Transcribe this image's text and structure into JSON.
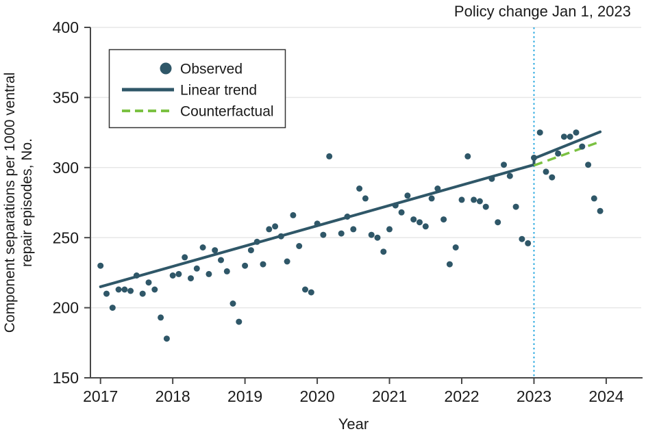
{
  "figure": {
    "policy_annotation": "Policy change Jan 1, 2023",
    "x_axis": {
      "label": "Year",
      "ticks": [
        "2017",
        "2018",
        "2019",
        "2020",
        "2021",
        "2022",
        "2023",
        "2024"
      ]
    },
    "y_axis": {
      "title_line1": "Component separations per 1000 ventral",
      "title_line2": "repair episodes, No.",
      "ticks": [
        "150",
        "200",
        "250",
        "300",
        "350",
        "400"
      ]
    },
    "legend": {
      "items": [
        {
          "label": "Observed",
          "marker": "dot"
        },
        {
          "label": "Linear trend",
          "marker": "solid-line"
        },
        {
          "label": "Counterfactual",
          "marker": "dashed-line"
        }
      ]
    }
  },
  "colors": {
    "observed": "#2F5768",
    "trend": "#2F5768",
    "counterfactual": "#7BC142",
    "policy": "#29A9E0",
    "grid": "#E7E7E7",
    "axis": "#474747",
    "text": "#1A1A1A"
  },
  "chart_data": {
    "type": "scatter",
    "title": "Policy change Jan 1, 2023",
    "xlabel": "Year",
    "ylabel": "Component separations per 1000 ventral repair episodes, No.",
    "ylim": [
      150,
      400
    ],
    "xlim": [
      2016.86,
      2024.49
    ],
    "x_ticks": [
      2017,
      2018,
      2019,
      2020,
      2021,
      2022,
      2023,
      2024
    ],
    "y_ticks": [
      150,
      200,
      250,
      300,
      350,
      400
    ],
    "grid": "horizontal-only",
    "legend_position": "upper-left-inset",
    "policy_change_x": 2023.0,
    "observed_monthly": [
      [
        "2017-01",
        230
      ],
      [
        "2017-02",
        210
      ],
      [
        "2017-03",
        200
      ],
      [
        "2017-04",
        213
      ],
      [
        "2017-05",
        213
      ],
      [
        "2017-06",
        212
      ],
      [
        "2017-07",
        223
      ],
      [
        "2017-08",
        210
      ],
      [
        "2017-09",
        218
      ],
      [
        "2017-10",
        213
      ],
      [
        "2017-11",
        193
      ],
      [
        "2017-12",
        178
      ],
      [
        "2018-01",
        223
      ],
      [
        "2018-02",
        224
      ],
      [
        "2018-03",
        236
      ],
      [
        "2018-04",
        221
      ],
      [
        "2018-05",
        228
      ],
      [
        "2018-06",
        243
      ],
      [
        "2018-07",
        224
      ],
      [
        "2018-08",
        241
      ],
      [
        "2018-09",
        234
      ],
      [
        "2018-10",
        226
      ],
      [
        "2018-11",
        203
      ],
      [
        "2018-12",
        190
      ],
      [
        "2019-01",
        230
      ],
      [
        "2019-02",
        241
      ],
      [
        "2019-03",
        247
      ],
      [
        "2019-04",
        231
      ],
      [
        "2019-05",
        256
      ],
      [
        "2019-06",
        258
      ],
      [
        "2019-07",
        251
      ],
      [
        "2019-08",
        233
      ],
      [
        "2019-09",
        266
      ],
      [
        "2019-10",
        244
      ],
      [
        "2019-11",
        213
      ],
      [
        "2019-12",
        211
      ],
      [
        "2020-01",
        260
      ],
      [
        "2020-02",
        252
      ],
      [
        "2020-03",
        308
      ],
      [
        "2020-05",
        253
      ],
      [
        "2020-06",
        265
      ],
      [
        "2020-07",
        256
      ],
      [
        "2020-08",
        285
      ],
      [
        "2020-09",
        278
      ],
      [
        "2020-10",
        252
      ],
      [
        "2020-11",
        250
      ],
      [
        "2020-12",
        240
      ],
      [
        "2021-01",
        256
      ],
      [
        "2021-02",
        273
      ],
      [
        "2021-03",
        268
      ],
      [
        "2021-04",
        280
      ],
      [
        "2021-05",
        263
      ],
      [
        "2021-06",
        261
      ],
      [
        "2021-07",
        258
      ],
      [
        "2021-08",
        278
      ],
      [
        "2021-09",
        285
      ],
      [
        "2021-10",
        263
      ],
      [
        "2021-11",
        231
      ],
      [
        "2021-12",
        243
      ],
      [
        "2022-01",
        277
      ],
      [
        "2022-02",
        308
      ],
      [
        "2022-03",
        277
      ],
      [
        "2022-04",
        276
      ],
      [
        "2022-05",
        272
      ],
      [
        "2022-06",
        292
      ],
      [
        "2022-07",
        261
      ],
      [
        "2022-08",
        302
      ],
      [
        "2022-09",
        294
      ],
      [
        "2022-10",
        272
      ],
      [
        "2022-11",
        249
      ],
      [
        "2022-12",
        246
      ],
      [
        "2023-01",
        307
      ],
      [
        "2023-02",
        325
      ],
      [
        "2023-03",
        297
      ],
      [
        "2023-04",
        293
      ],
      [
        "2023-05",
        310
      ],
      [
        "2023-06",
        322
      ],
      [
        "2023-07",
        322
      ],
      [
        "2023-08",
        325
      ],
      [
        "2023-09",
        315
      ],
      [
        "2023-10",
        302
      ],
      [
        "2023-11",
        278
      ],
      [
        "2023-12",
        269
      ]
    ],
    "linear_trend": {
      "pre": [
        [
          2017.0,
          215
        ],
        [
          2023.0,
          302
        ]
      ],
      "post": [
        [
          2023.0,
          306.5
        ],
        [
          2023.9167,
          325.5
        ]
      ]
    },
    "counterfactual": [
      [
        2023.0,
        301.5
      ],
      [
        2023.9167,
        318.5
      ]
    ]
  }
}
